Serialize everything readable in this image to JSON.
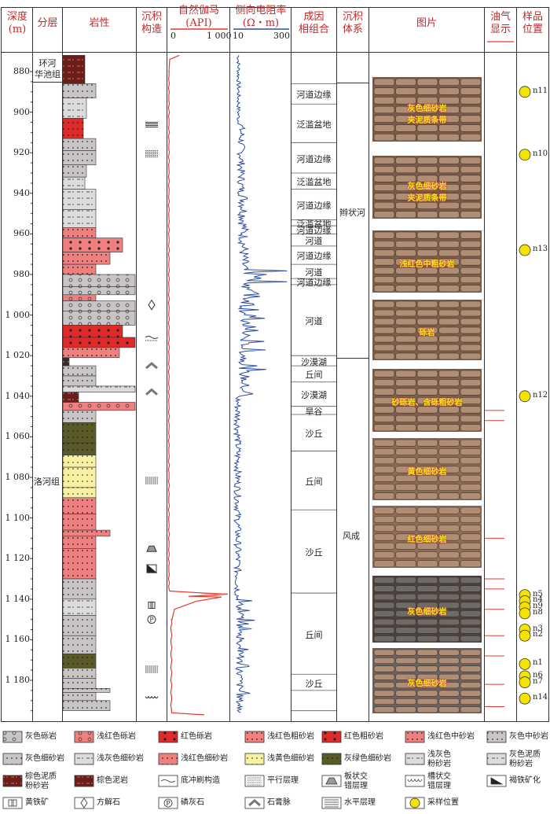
{
  "headers": {
    "depth": "深度",
    "depth_unit": "(m)",
    "layer": "分层",
    "lithology": "岩性",
    "structure_l1": "沉积",
    "structure_l2": "构造",
    "gr_title": "自然伽马",
    "gr_unit": "(API)",
    "gr_min": "0",
    "gr_max": "1 000",
    "res_title": "侧向电阻率",
    "res_unit": "(Ω・m)",
    "res_min": "10",
    "res_max": "300",
    "facies_l1": "成因",
    "facies_l2": "相组合",
    "system_l1": "沉积",
    "system_l2": "体系",
    "photo": "图片",
    "oil_l1": "油气",
    "oil_l2": "显示",
    "sample_l1": "样品",
    "sample_l2": "位置"
  },
  "depth_ticks": [
    "880",
    "900",
    "920",
    "940",
    "960",
    "980",
    "1 000",
    "1 020",
    "1 040",
    "1 060",
    "1 080",
    "1 100",
    "1 120",
    "1 140",
    "1 160",
    "1 180"
  ],
  "layers": {
    "upper_l1": "环河",
    "upper_l2": "华池组",
    "lower": "洛河组"
  },
  "facies": [
    {
      "label": "河道边缘"
    },
    {
      "label": "泛滥盆地"
    },
    {
      "label": "河道边缘"
    },
    {
      "label": "泛滥盆地"
    },
    {
      "label": "河道边缘"
    },
    {
      "label": "泛滥盆地"
    },
    {
      "label": "河道边缘"
    },
    {
      "label": "河道"
    },
    {
      "label": "河道边缘"
    },
    {
      "label": "河道"
    },
    {
      "label": "河道边缘"
    },
    {
      "label": "河道"
    },
    {
      "label": "沙漠湖"
    },
    {
      "label": "丘间"
    },
    {
      "label": "沙漠湖"
    },
    {
      "label": "旱谷"
    },
    {
      "label": "沙丘"
    },
    {
      "label": "丘间"
    },
    {
      "label": "沙丘"
    },
    {
      "label": "丘间"
    },
    {
      "label": "沙丘"
    }
  ],
  "systems": {
    "upper": "辫状河",
    "lower": "风成"
  },
  "photos": [
    {
      "caption_l1": "灰色细砂岩",
      "caption_l2": "夹泥质条带"
    },
    {
      "caption_l1": "灰色细砂岩",
      "caption_l2": "夹泥质条带"
    },
    {
      "caption_l1": "浅红色中粗砂岩",
      "caption_l2": ""
    },
    {
      "caption_l1": "砾岩",
      "caption_l2": ""
    },
    {
      "caption_l1": "砂砾岩、含砾粗砂岩",
      "caption_l2": ""
    },
    {
      "caption_l1": "黄色细砂岩",
      "caption_l2": ""
    },
    {
      "caption_l1": "红色细砂岩",
      "caption_l2": ""
    },
    {
      "caption_l1": "灰色细砂岩",
      "caption_l2": ""
    },
    {
      "caption_l1": "灰色细砂岩",
      "caption_l2": ""
    }
  ],
  "samples": [
    "n11",
    "n10",
    "n13",
    "n12",
    "n5",
    "n4",
    "n9",
    "n8",
    "n3",
    "n2",
    "n1",
    "n6",
    "n7",
    "n14"
  ],
  "legend": [
    {
      "l1": "灰色砾岩",
      "l2": ""
    },
    {
      "l1": "浅红色砾岩",
      "l2": ""
    },
    {
      "l1": "红色砾岩",
      "l2": ""
    },
    {
      "l1": "浅红色粗砂岩",
      "l2": ""
    },
    {
      "l1": "红色粗砂岩",
      "l2": ""
    },
    {
      "l1": "浅红色中砂岩",
      "l2": ""
    },
    {
      "l1": "灰色中砂岩",
      "l2": ""
    },
    {
      "l1": "灰色细砂岩",
      "l2": ""
    },
    {
      "l1": "浅灰色细砂岩",
      "l2": ""
    },
    {
      "l1": "浅红色细砂岩",
      "l2": ""
    },
    {
      "l1": "浅黄色细砂岩",
      "l2": ""
    },
    {
      "l1": "灰绿色细砂岩",
      "l2": ""
    },
    {
      "l1": "浅灰色",
      "l2": "粉砂岩"
    },
    {
      "l1": "灰色泥质",
      "l2": "粉砂岩"
    },
    {
      "l1": "棕色泥质",
      "l2": "粉砂岩"
    },
    {
      "l1": "棕色泥岩",
      "l2": ""
    },
    {
      "l1": "底冲刷构造",
      "l2": ""
    },
    {
      "l1": "平行层理",
      "l2": ""
    },
    {
      "l1": "板状交",
      "l2": "错层理"
    },
    {
      "l1": "槽状交",
      "l2": "错层理"
    },
    {
      "l1": "褐铁矿化",
      "l2": ""
    },
    {
      "l1": "黄铁矿",
      "l2": ""
    },
    {
      "l1": "方解石",
      "l2": ""
    },
    {
      "l1": "磷灰石",
      "l2": ""
    },
    {
      "l1": "石膏脉",
      "l2": ""
    },
    {
      "l1": "水平层理",
      "l2": ""
    },
    {
      "l1": "采样位置",
      "l2": ""
    }
  ],
  "colors": {
    "gr_curve": "#e03a2e",
    "res_curve": "#2c4da0",
    "sample_dot": "#f5e400",
    "oil_line": "#e03a2e"
  }
}
